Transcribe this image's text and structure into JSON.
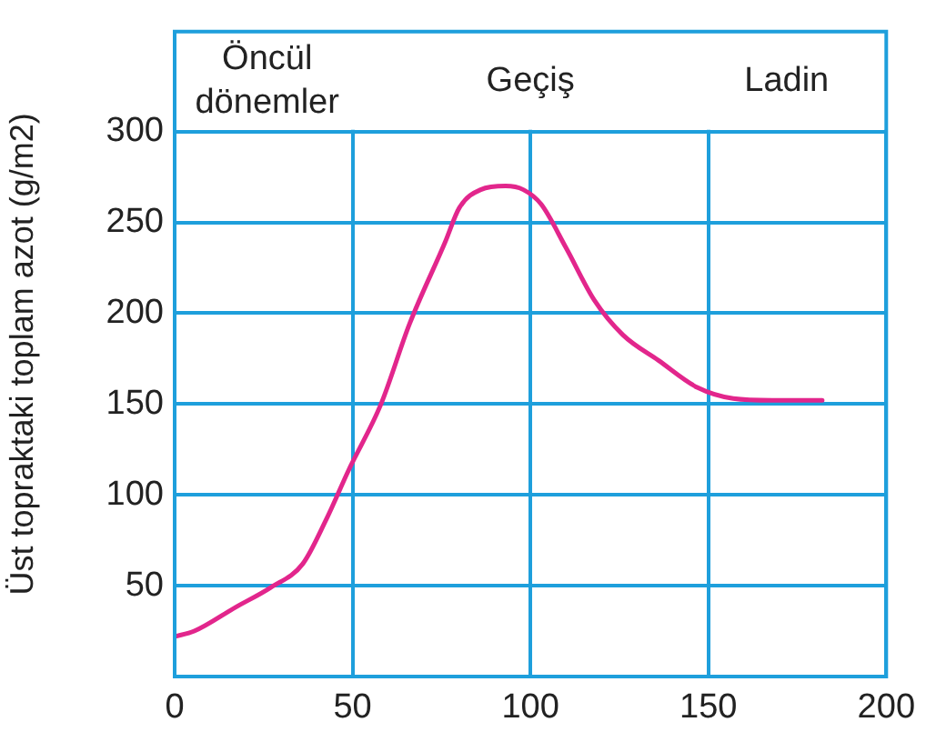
{
  "chart_data": {
    "type": "line",
    "ylabel": "Üst topraktaki toplam azot (g/m2)",
    "xlim": [
      0,
      200
    ],
    "xticks": [
      0,
      50,
      100,
      150,
      200
    ],
    "ylim": [
      0,
      355
    ],
    "yticks": [
      50,
      100,
      150,
      200,
      250,
      300
    ],
    "grid": true,
    "marker": "none",
    "line_style": "solid",
    "series": [
      {
        "color": "#e2268c",
        "x": [
          0,
          5.5,
          17,
          27,
          36,
          42.5,
          49,
          58,
          66,
          76,
          80,
          86,
          93,
          98,
          103,
          110,
          118,
          126,
          136,
          147,
          157,
          168,
          182
        ],
        "values": [
          22,
          25,
          38,
          49,
          62,
          86,
          114,
          150,
          194,
          239,
          258,
          268,
          270,
          268,
          260,
          236,
          207,
          188,
          174,
          159,
          153,
          152,
          152
        ]
      }
    ],
    "annotations": [
      "Öncül dönemler",
      "Geçiş",
      "Ladin"
    ]
  }
}
